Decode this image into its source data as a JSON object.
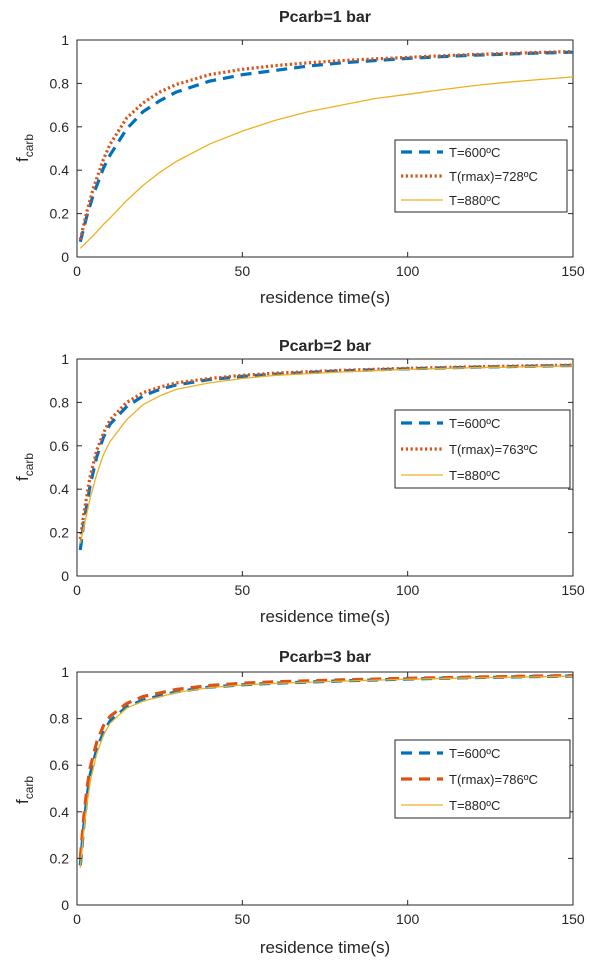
{
  "chart_data": [
    {
      "type": "line",
      "title": "Pcarb=1 bar",
      "xlabel": "residence time(s)",
      "ylabel": {
        "main": "f",
        "sub": "carb"
      },
      "xlim": [
        0,
        150
      ],
      "ylim": [
        0,
        1
      ],
      "xticks": [
        "0",
        "50",
        "100",
        "150"
      ],
      "yticks": [
        "0",
        "0.2",
        "0.4",
        "0.6",
        "0.8",
        "1"
      ],
      "grid": false,
      "legend_position": "right-middle",
      "x": [
        1,
        3,
        5,
        8,
        10,
        15,
        20,
        25,
        30,
        40,
        50,
        60,
        70,
        80,
        90,
        100,
        110,
        120,
        130,
        140,
        150
      ],
      "series": [
        {
          "name": "T=600ºC",
          "style": "dashed",
          "color": "#0072bd",
          "values": [
            0.07,
            0.19,
            0.29,
            0.41,
            0.47,
            0.59,
            0.67,
            0.72,
            0.76,
            0.81,
            0.84,
            0.86,
            0.88,
            0.895,
            0.905,
            0.915,
            0.923,
            0.93,
            0.935,
            0.94,
            0.944
          ]
        },
        {
          "name": "T(rmax)=728ºC",
          "style": "dotted",
          "color": "#d95319",
          "values": [
            0.08,
            0.21,
            0.32,
            0.45,
            0.52,
            0.64,
            0.71,
            0.76,
            0.795,
            0.84,
            0.865,
            0.882,
            0.895,
            0.905,
            0.913,
            0.92,
            0.927,
            0.933,
            0.938,
            0.943,
            0.947
          ]
        },
        {
          "name": "T=880ºC",
          "style": "solid",
          "color": "#edb120",
          "values": [
            0.04,
            0.07,
            0.1,
            0.15,
            0.18,
            0.26,
            0.33,
            0.39,
            0.44,
            0.52,
            0.58,
            0.63,
            0.67,
            0.7,
            0.73,
            0.75,
            0.77,
            0.79,
            0.805,
            0.818,
            0.83
          ]
        }
      ]
    },
    {
      "type": "line",
      "title": "Pcarb=2 bar",
      "xlabel": "residence time(s)",
      "ylabel": {
        "main": "f",
        "sub": "carb"
      },
      "xlim": [
        0,
        150
      ],
      "ylim": [
        0,
        1
      ],
      "xticks": [
        "0",
        "50",
        "100",
        "150"
      ],
      "yticks": [
        "0",
        "0.2",
        "0.4",
        "0.6",
        "0.8",
        "1"
      ],
      "grid": false,
      "legend_position": "right-middle",
      "x": [
        1,
        2,
        4,
        6,
        8,
        10,
        15,
        20,
        25,
        30,
        40,
        50,
        60,
        80,
        100,
        120,
        150
      ],
      "series": [
        {
          "name": "T=600ºC",
          "style": "dashed",
          "color": "#0072bd",
          "values": [
            0.12,
            0.24,
            0.42,
            0.55,
            0.64,
            0.7,
            0.78,
            0.83,
            0.86,
            0.88,
            0.905,
            0.92,
            0.93,
            0.945,
            0.955,
            0.962,
            0.97
          ]
        },
        {
          "name": "T(rmax)=763ºC",
          "style": "dotted",
          "color": "#d95319",
          "values": [
            0.17,
            0.28,
            0.46,
            0.58,
            0.66,
            0.72,
            0.8,
            0.845,
            0.87,
            0.89,
            0.91,
            0.925,
            0.935,
            0.948,
            0.957,
            0.964,
            0.972
          ]
        },
        {
          "name": "T=880ºC",
          "style": "solid",
          "color": "#edb120",
          "values": [
            0.15,
            0.22,
            0.36,
            0.47,
            0.56,
            0.62,
            0.72,
            0.79,
            0.83,
            0.86,
            0.89,
            0.91,
            0.925,
            0.94,
            0.952,
            0.96,
            0.968
          ]
        }
      ]
    },
    {
      "type": "line",
      "title": "Pcarb=3 bar",
      "xlabel": "residence time(s)",
      "ylabel": {
        "main": "f",
        "sub": "carb"
      },
      "xlim": [
        0,
        150
      ],
      "ylim": [
        0,
        1
      ],
      "xticks": [
        "0",
        "50",
        "100",
        "150"
      ],
      "yticks": [
        "0",
        "0.2",
        "0.4",
        "0.6",
        "0.8",
        "1"
      ],
      "grid": false,
      "legend_position": "right-middle",
      "x": [
        1,
        2,
        3,
        4,
        6,
        8,
        10,
        15,
        20,
        30,
        40,
        50,
        60,
        80,
        100,
        120,
        150
      ],
      "series": [
        {
          "name": "T=600ºC",
          "style": "dashed",
          "color": "#0072bd",
          "values": [
            0.17,
            0.33,
            0.46,
            0.56,
            0.67,
            0.74,
            0.79,
            0.85,
            0.88,
            0.915,
            0.935,
            0.945,
            0.952,
            0.962,
            0.97,
            0.976,
            0.983
          ]
        },
        {
          "name": "T(rmax)=786ºC",
          "style": "dashed",
          "color": "#d95319",
          "values": [
            0.2,
            0.37,
            0.5,
            0.59,
            0.7,
            0.77,
            0.81,
            0.865,
            0.895,
            0.925,
            0.942,
            0.952,
            0.958,
            0.966,
            0.973,
            0.978,
            0.985
          ]
        },
        {
          "name": "T=880ºC",
          "style": "solid",
          "color": "#edb120",
          "values": [
            0.16,
            0.31,
            0.43,
            0.53,
            0.65,
            0.73,
            0.78,
            0.845,
            0.875,
            0.912,
            0.933,
            0.944,
            0.951,
            0.961,
            0.969,
            0.975,
            0.982
          ]
        }
      ]
    }
  ]
}
